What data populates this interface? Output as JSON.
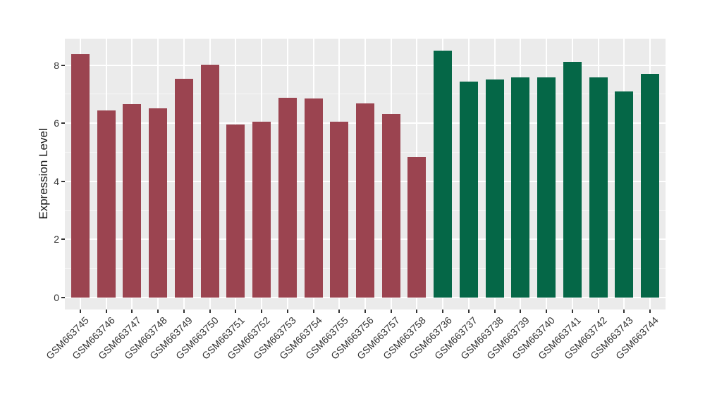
{
  "chart_data": {
    "type": "bar",
    "title": "",
    "xlabel": "",
    "ylabel": "Expression Level",
    "categories": [
      "GSM663745",
      "GSM663746",
      "GSM663747",
      "GSM663748",
      "GSM663749",
      "GSM663750",
      "GSM663751",
      "GSM663752",
      "GSM663753",
      "GSM663754",
      "GSM663755",
      "GSM663756",
      "GSM663757",
      "GSM663758",
      "GSM663736",
      "GSM663737",
      "GSM663738",
      "GSM663739",
      "GSM663740",
      "GSM663741",
      "GSM663742",
      "GSM663743",
      "GSM663744"
    ],
    "values": [
      8.37,
      6.45,
      6.65,
      6.52,
      7.53,
      8.01,
      5.95,
      6.06,
      6.88,
      6.86,
      6.05,
      6.68,
      6.32,
      4.85,
      8.49,
      7.43,
      7.5,
      7.57,
      7.57,
      8.1,
      7.57,
      7.09,
      7.7
    ],
    "group_of_category": [
      0,
      0,
      0,
      0,
      0,
      0,
      0,
      0,
      0,
      0,
      0,
      0,
      0,
      0,
      1,
      1,
      1,
      1,
      1,
      1,
      1,
      1,
      1
    ],
    "bar_group_colors": [
      "#9B4450",
      "#056747"
    ],
    "yticks": [
      0,
      2,
      4,
      6,
      8
    ],
    "minor_yticks": [
      1,
      3,
      5,
      7
    ],
    "ylim": [
      -0.41,
      8.91
    ],
    "grid": true,
    "legend_position": "none",
    "colors": {
      "panel_background": "#EBEBEB",
      "figure_background": "#FFFFFF",
      "grid": "#FFFFFF",
      "tick": "#333333",
      "axis_text": "#333333",
      "axis_title": "#1A1A1A"
    }
  }
}
